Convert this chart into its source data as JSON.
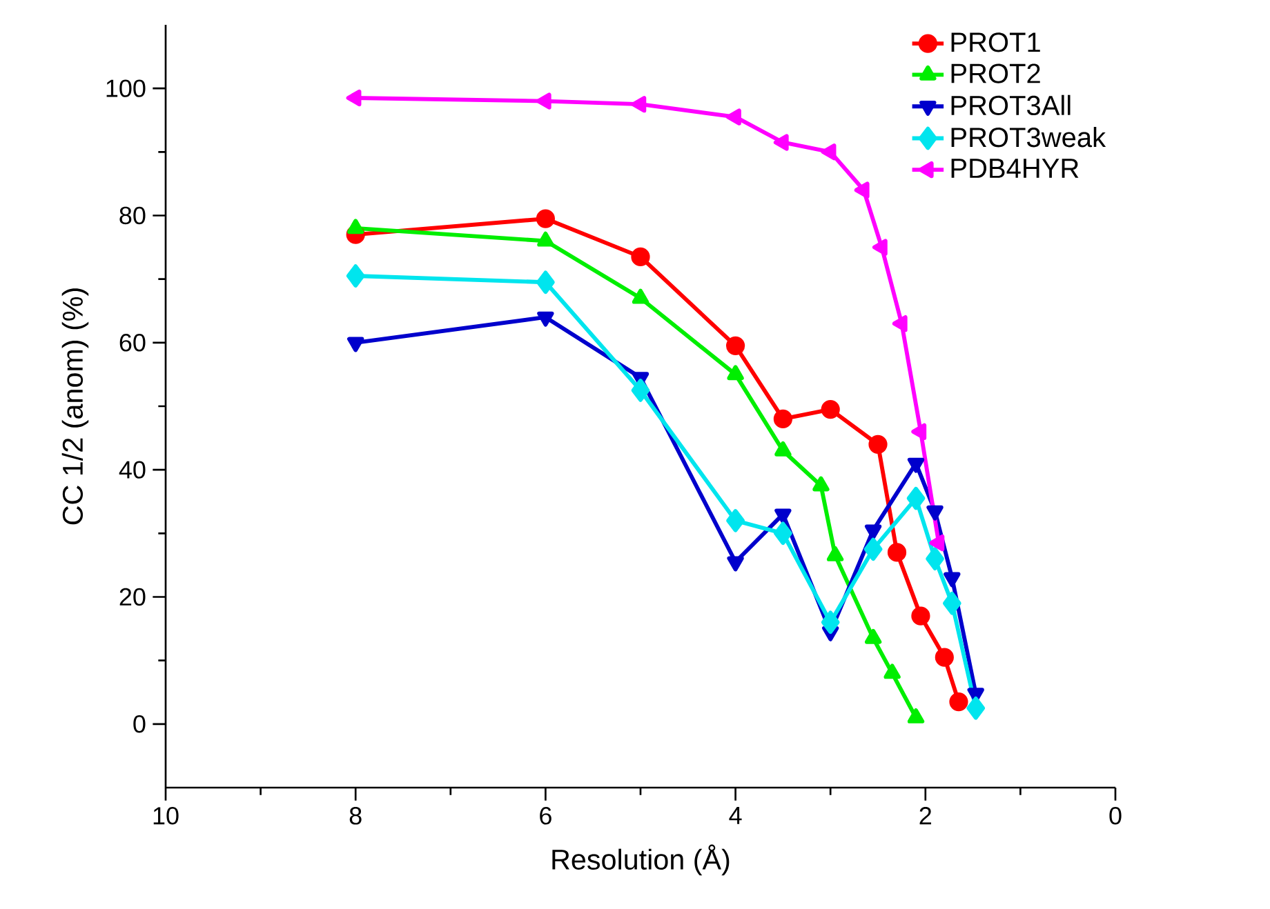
{
  "chart_data": {
    "type": "line",
    "xlabel": "Resolution (Å)",
    "ylabel": "CC 1/2 (anom) (%)",
    "xlim": [
      10,
      0
    ],
    "xticks": [
      10,
      8,
      6,
      4,
      2,
      0
    ],
    "ylim": [
      -10,
      110
    ],
    "yticks": [
      0,
      20,
      40,
      60,
      80,
      100
    ],
    "grid": false,
    "legend": "top right",
    "series": [
      {
        "name": "PROT1",
        "color": "#ff0000",
        "marker": "circle",
        "x": [
          8,
          6,
          5,
          4,
          3.5,
          3,
          2.5,
          2.3,
          2.05,
          1.8,
          1.65
        ],
        "values": [
          77,
          79.5,
          73.5,
          59.5,
          48,
          49.5,
          44,
          27,
          17,
          10.5,
          3.5
        ]
      },
      {
        "name": "PROT2",
        "color": "#00ee00",
        "marker": "triangle",
        "x": [
          8,
          6,
          5,
          4,
          3.5,
          3.1,
          2.95,
          2.55,
          2.35,
          2.1
        ],
        "values": [
          78,
          76,
          67,
          55,
          43,
          37.5,
          26.5,
          13.5,
          8,
          1
        ]
      },
      {
        "name": "PROT3All",
        "color": "#0000cc",
        "marker": "triangle-down",
        "x": [
          8,
          6,
          5,
          4,
          3.5,
          3,
          2.55,
          2.1,
          1.9,
          1.72,
          1.47
        ],
        "values": [
          60,
          64,
          54.5,
          25.5,
          33,
          14.5,
          30.5,
          41,
          33.5,
          23,
          4.8
        ]
      },
      {
        "name": "PROT3weak",
        "color": "#00e5ee",
        "marker": "diamond",
        "x": [
          8,
          6,
          5,
          4,
          3.5,
          3,
          2.55,
          2.1,
          1.9,
          1.72,
          1.47
        ],
        "values": [
          70.5,
          69.5,
          52.5,
          32,
          30,
          16,
          27.5,
          35.5,
          26,
          19,
          2.5
        ]
      },
      {
        "name": "PDB4HYR",
        "color": "#ff00ff",
        "marker": "triangle-left",
        "x": [
          8,
          6,
          5,
          4,
          3.5,
          3,
          2.65,
          2.46,
          2.25,
          2.05,
          1.86
        ],
        "values": [
          98.5,
          98,
          97.5,
          95.5,
          91.5,
          90,
          84,
          75,
          63,
          46,
          28.5
        ]
      }
    ]
  }
}
